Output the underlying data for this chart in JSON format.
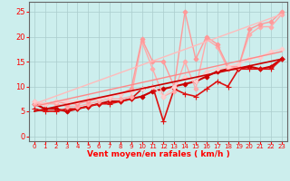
{
  "bg_color": "#cceeed",
  "grid_color": "#aacccc",
  "axis_color": "#666666",
  "text_color": "#ff0000",
  "xlabel": "Vent moyen/en rafales ( km/h )",
  "xlim": [
    -0.5,
    23.5
  ],
  "ylim": [
    -1,
    27
  ],
  "yticks": [
    0,
    5,
    10,
    15,
    20,
    25
  ],
  "xticks": [
    0,
    1,
    2,
    3,
    4,
    5,
    6,
    7,
    8,
    9,
    10,
    11,
    12,
    13,
    14,
    15,
    16,
    17,
    18,
    19,
    20,
    21,
    22,
    23
  ],
  "lines": [
    {
      "comment": "dark red main line with diamonds - rises gently with bumps",
      "x": [
        0,
        1,
        2,
        3,
        4,
        5,
        6,
        7,
        8,
        9,
        10,
        11,
        12,
        13,
        14,
        15,
        16,
        17,
        18,
        19,
        20,
        21,
        22,
        23
      ],
      "y": [
        6.5,
        5.5,
        5.5,
        5.0,
        5.5,
        6.0,
        6.5,
        7.0,
        7.0,
        7.5,
        8.0,
        9.0,
        9.5,
        10.0,
        10.5,
        11.0,
        12.0,
        13.0,
        13.5,
        13.5,
        14.0,
        13.5,
        14.0,
        15.5
      ],
      "color": "#cc0000",
      "lw": 1.5,
      "marker": "D",
      "ms": 2.5
    },
    {
      "comment": "medium red line with + markers - similar gentle rise",
      "x": [
        0,
        1,
        2,
        3,
        4,
        5,
        6,
        7,
        8,
        9,
        10,
        11,
        12,
        13,
        14,
        15,
        16,
        17,
        18,
        19,
        20,
        21,
        22,
        23
      ],
      "y": [
        5.5,
        5.0,
        5.0,
        5.5,
        5.5,
        6.0,
        6.5,
        6.5,
        7.0,
        7.5,
        9.5,
        10.0,
        3.0,
        9.5,
        8.5,
        8.0,
        9.5,
        11.0,
        10.0,
        13.5,
        13.5,
        13.5,
        13.5,
        15.5
      ],
      "color": "#dd1111",
      "lw": 1.2,
      "marker": "+",
      "ms": 4
    },
    {
      "comment": "light pink line - rises more steeply, reaches ~24",
      "x": [
        0,
        1,
        2,
        3,
        4,
        5,
        6,
        7,
        8,
        9,
        10,
        11,
        12,
        13,
        14,
        15,
        16,
        17,
        18,
        19,
        20,
        21,
        22,
        23
      ],
      "y": [
        6.5,
        6.5,
        6.5,
        6.0,
        6.0,
        6.5,
        7.0,
        7.5,
        7.5,
        8.0,
        19.0,
        13.5,
        8.0,
        9.0,
        15.0,
        9.5,
        19.5,
        18.0,
        13.5,
        14.0,
        20.5,
        22.0,
        22.0,
        24.5
      ],
      "color": "#ffaaaa",
      "lw": 1.0,
      "marker": "D",
      "ms": 2.5
    },
    {
      "comment": "light pink line 2 - highest, reaches ~25",
      "x": [
        0,
        1,
        2,
        3,
        4,
        5,
        6,
        7,
        8,
        9,
        10,
        11,
        12,
        13,
        14,
        15,
        16,
        17,
        18,
        19,
        20,
        21,
        22,
        23
      ],
      "y": [
        7.0,
        6.5,
        7.0,
        6.5,
        6.5,
        7.0,
        7.5,
        8.0,
        8.5,
        9.5,
        19.5,
        15.0,
        15.0,
        10.0,
        25.0,
        15.5,
        20.0,
        18.5,
        14.0,
        14.0,
        21.5,
        22.5,
        23.0,
        25.0
      ],
      "color": "#ff9999",
      "lw": 1.0,
      "marker": "D",
      "ms": 2.5
    },
    {
      "comment": "very light pink - gentle rise to ~17",
      "x": [
        0,
        1,
        2,
        3,
        4,
        5,
        6,
        7,
        8,
        9,
        10,
        11,
        12,
        13,
        14,
        15,
        16,
        17,
        18,
        19,
        20,
        21,
        22,
        23
      ],
      "y": [
        7.0,
        6.5,
        7.0,
        7.0,
        7.0,
        7.5,
        7.5,
        8.0,
        8.5,
        9.0,
        9.5,
        10.0,
        8.0,
        10.0,
        12.0,
        11.0,
        13.0,
        13.5,
        14.0,
        14.5,
        15.5,
        16.0,
        17.0,
        17.5
      ],
      "color": "#ffcccc",
      "lw": 1.0,
      "marker": "D",
      "ms": 2.5
    },
    {
      "comment": "regression line dark red",
      "x": [
        0,
        23
      ],
      "y": [
        5.0,
        15.5
      ],
      "color": "#cc0000",
      "lw": 1.2,
      "marker": null,
      "ms": 0
    },
    {
      "comment": "regression line medium pink",
      "x": [
        0,
        23
      ],
      "y": [
        6.0,
        17.0
      ],
      "color": "#ff8888",
      "lw": 1.0,
      "marker": null,
      "ms": 0
    },
    {
      "comment": "regression line light pink",
      "x": [
        0,
        23
      ],
      "y": [
        6.5,
        24.5
      ],
      "color": "#ffbbbb",
      "lw": 1.0,
      "marker": null,
      "ms": 0
    }
  ]
}
